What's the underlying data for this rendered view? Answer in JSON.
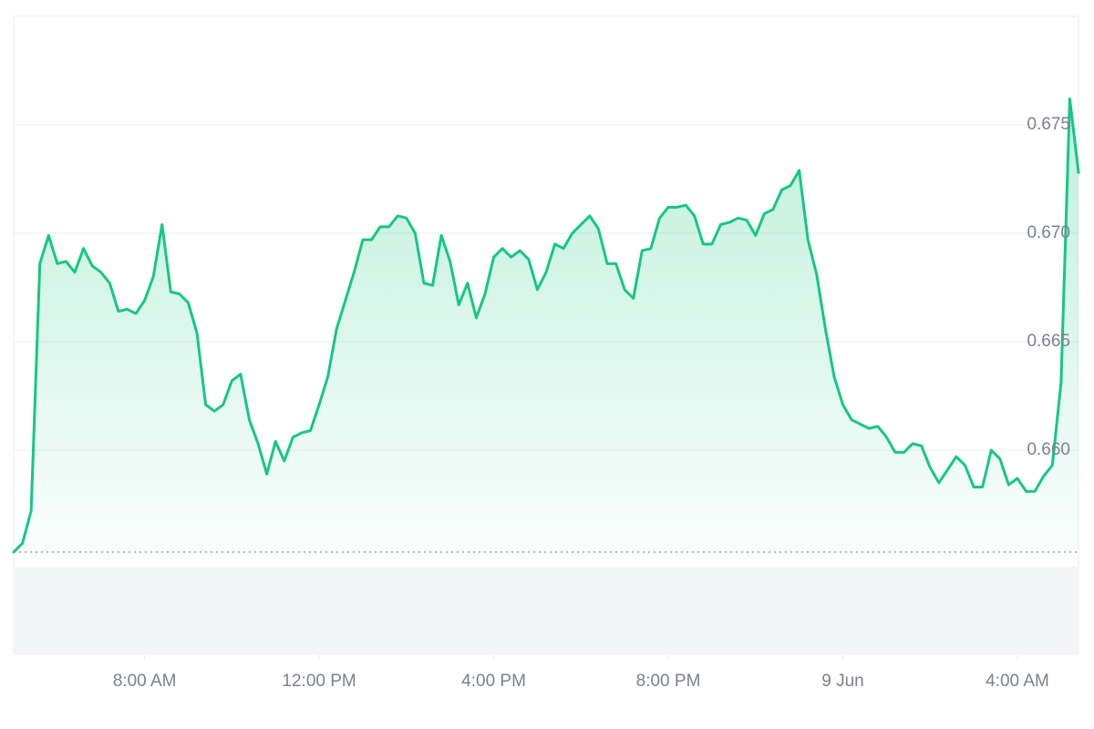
{
  "chart_data": {
    "type": "line",
    "color": "#16c784",
    "grid": true,
    "xlim": [
      5,
      29.4
    ],
    "xticks": [
      {
        "value": 8,
        "label": "8:00 AM"
      },
      {
        "value": 12,
        "label": "12:00 PM"
      },
      {
        "value": 16,
        "label": "4:00 PM"
      },
      {
        "value": 20,
        "label": "8:00 PM"
      },
      {
        "value": 24,
        "label": "9 Jun"
      },
      {
        "value": 28,
        "label": "4:00 AM"
      }
    ],
    "ylim": [
      0.655,
      0.68
    ],
    "yticks": [
      {
        "value": 0.66,
        "label": "0.660"
      },
      0.665,
      {
        "value": 0.67,
        "label": "0.670"
      },
      0.675
    ],
    "x": [
      5,
      5.2,
      5.4,
      5.6,
      5.8,
      6,
      6.2,
      6.4,
      6.6,
      6.8,
      7,
      7.2,
      7.4,
      7.6,
      7.8,
      8,
      8.2,
      8.4,
      8.6,
      8.8,
      9,
      9.2,
      9.4,
      9.6,
      9.8,
      10,
      10.2,
      10.4,
      10.6,
      10.8,
      11,
      11.2,
      11.4,
      11.6,
      11.8,
      12,
      12.2,
      12.4,
      12.6,
      12.8,
      13,
      13.2,
      13.4,
      13.6,
      13.8,
      14,
      14.2,
      14.4,
      14.6,
      14.8,
      15,
      15.2,
      15.4,
      15.6,
      15.8,
      16,
      16.2,
      16.4,
      16.6,
      16.8,
      17,
      17.2,
      17.4,
      17.6,
      17.8,
      18,
      18.2,
      18.4,
      18.6,
      18.8,
      19,
      19.2,
      19.4,
      19.6,
      19.8,
      20,
      20.2,
      20.4,
      20.6,
      20.8,
      21,
      21.2,
      21.4,
      21.6,
      21.8,
      22,
      22.2,
      22.4,
      22.6,
      22.8,
      23,
      23.2,
      23.4,
      23.6,
      23.8,
      24,
      24.2,
      24.4,
      24.6,
      24.8,
      25,
      25.2,
      25.4,
      25.6,
      25.8,
      26,
      26.2,
      26.4,
      26.6,
      26.8,
      27,
      27.2,
      27.4,
      27.6,
      27.8,
      28,
      28.2,
      28.4,
      28.6,
      28.8,
      29,
      29.2,
      29.4
    ],
    "values": [
      0.6553,
      0.6557,
      0.6572,
      0.6686,
      0.6699,
      0.6686,
      0.6687,
      0.6682,
      0.6693,
      0.6685,
      0.6682,
      0.6677,
      0.6664,
      0.6665,
      0.6663,
      0.6669,
      0.668,
      0.6704,
      0.6673,
      0.6672,
      0.6668,
      0.6654,
      0.6621,
      0.6618,
      0.6621,
      0.6632,
      0.6635,
      0.6614,
      0.6603,
      0.6589,
      0.6604,
      0.6595,
      0.6606,
      0.6608,
      0.6609,
      0.6621,
      0.6634,
      0.6656,
      0.6669,
      0.6682,
      0.6697,
      0.6697,
      0.6703,
      0.6703,
      0.6708,
      0.6707,
      0.67,
      0.6677,
      0.6676,
      0.6699,
      0.6687,
      0.6667,
      0.6677,
      0.6661,
      0.6672,
      0.6689,
      0.6693,
      0.6689,
      0.6692,
      0.6688,
      0.6674,
      0.6682,
      0.6695,
      0.6693,
      0.67,
      0.6704,
      0.6708,
      0.6702,
      0.6686,
      0.6686,
      0.6674,
      0.667,
      0.6692,
      0.6693,
      0.6707,
      0.6712,
      0.6712,
      0.6713,
      0.6708,
      0.6695,
      0.6695,
      0.6704,
      0.6705,
      0.6707,
      0.6706,
      0.6699,
      0.6709,
      0.6711,
      0.672,
      0.6722,
      0.6729,
      0.6697,
      0.6681,
      0.6656,
      0.6634,
      0.6621,
      0.6614,
      0.6612,
      0.661,
      0.6611,
      0.6606,
      0.6599,
      0.6599,
      0.6603,
      0.6602,
      0.6592,
      0.6585,
      0.6591,
      0.6597,
      0.6593,
      0.6583,
      0.6583,
      0.66,
      0.6596,
      0.6584,
      0.6587,
      0.6581,
      0.6581,
      0.6588,
      0.6593,
      0.6631,
      0.6762,
      0.6728
    ]
  }
}
